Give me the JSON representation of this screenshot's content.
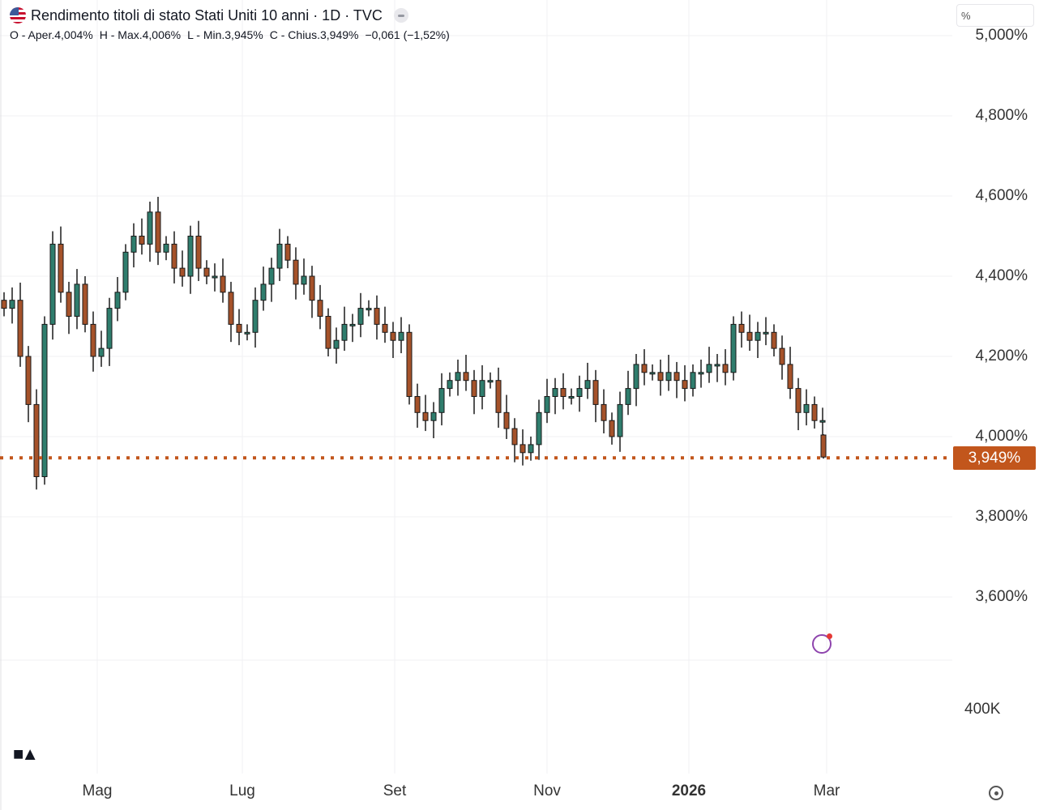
{
  "header": {
    "title": "Rendimento titoli di stato Stati Uniti 10 anni · 1D · TVC",
    "open": "O - Aper.4,004%",
    "high": "H - Max.4,006%",
    "low": "L - Min.3,945%",
    "close": "C - Chius.3,949%",
    "change": "−0,061 (−1,52%)",
    "flag_icon": "us-flag-icon"
  },
  "unit_box": "%",
  "colors": {
    "up": "#2f7d6d",
    "down": "#a5522a",
    "wick": "#1a1a1a",
    "last_line": "#c2561c"
  },
  "chart_data": {
    "type": "candlestick",
    "title": "Rendimento titoli di stato Stati Uniti 10 anni",
    "ylabel": "%",
    "ylim": [
      3.5,
      5.0
    ],
    "y_ticks": [
      "5,000%",
      "4,800%",
      "4,600%",
      "4,400%",
      "4,200%",
      "4,000%",
      "3,800%",
      "3,600%"
    ],
    "y_tick_values": [
      5.0,
      4.8,
      4.6,
      4.4,
      4.2,
      4.0,
      3.8,
      3.6
    ],
    "x_ticks": [
      {
        "label": "Mag",
        "index": 11.5,
        "bold": false
      },
      {
        "label": "Lug",
        "index": 29.4,
        "bold": false
      },
      {
        "label": "Set",
        "index": 48.2,
        "bold": false
      },
      {
        "label": "Nov",
        "index": 67,
        "bold": false
      },
      {
        "label": "2026",
        "index": 84.5,
        "bold": true
      },
      {
        "label": "Mar",
        "index": 101.5,
        "bold": false
      }
    ],
    "close": [
      4.32,
      4.34,
      4.2,
      4.08,
      3.9,
      4.28,
      4.48,
      4.36,
      4.3,
      4.38,
      4.28,
      4.2,
      4.22,
      4.32,
      4.36,
      4.46,
      4.5,
      4.48,
      4.56,
      4.46,
      4.48,
      4.42,
      4.4,
      4.5,
      4.42,
      4.4,
      4.4,
      4.36,
      4.28,
      4.26,
      4.26,
      4.34,
      4.38,
      4.42,
      4.48,
      4.44,
      4.38,
      4.4,
      4.34,
      4.3,
      4.22,
      4.24,
      4.28,
      4.28,
      4.32,
      4.32,
      4.28,
      4.26,
      4.24,
      4.26,
      4.1,
      4.06,
      4.04,
      4.06,
      4.12,
      4.14,
      4.16,
      4.14,
      4.1,
      4.14,
      4.14,
      4.06,
      4.02,
      3.98,
      3.96,
      3.98,
      4.06,
      4.1,
      4.12,
      4.1,
      4.1,
      4.12,
      4.14,
      4.08,
      4.04,
      4.0,
      4.08,
      4.12,
      4.18,
      4.16,
      4.16,
      4.14,
      4.16,
      4.14,
      4.12,
      4.16,
      4.16,
      4.18,
      4.18,
      4.16,
      4.28,
      4.26,
      4.24,
      4.26,
      4.26,
      4.22,
      4.18,
      4.12,
      4.06,
      4.08,
      4.04,
      4.04
    ],
    "last": {
      "open": 4.004,
      "high": 4.006,
      "low": 3.945,
      "close": 3.949
    },
    "last_price_label": "3,949%",
    "volume_label": "400K"
  },
  "footer": {
    "logo": "TV"
  }
}
